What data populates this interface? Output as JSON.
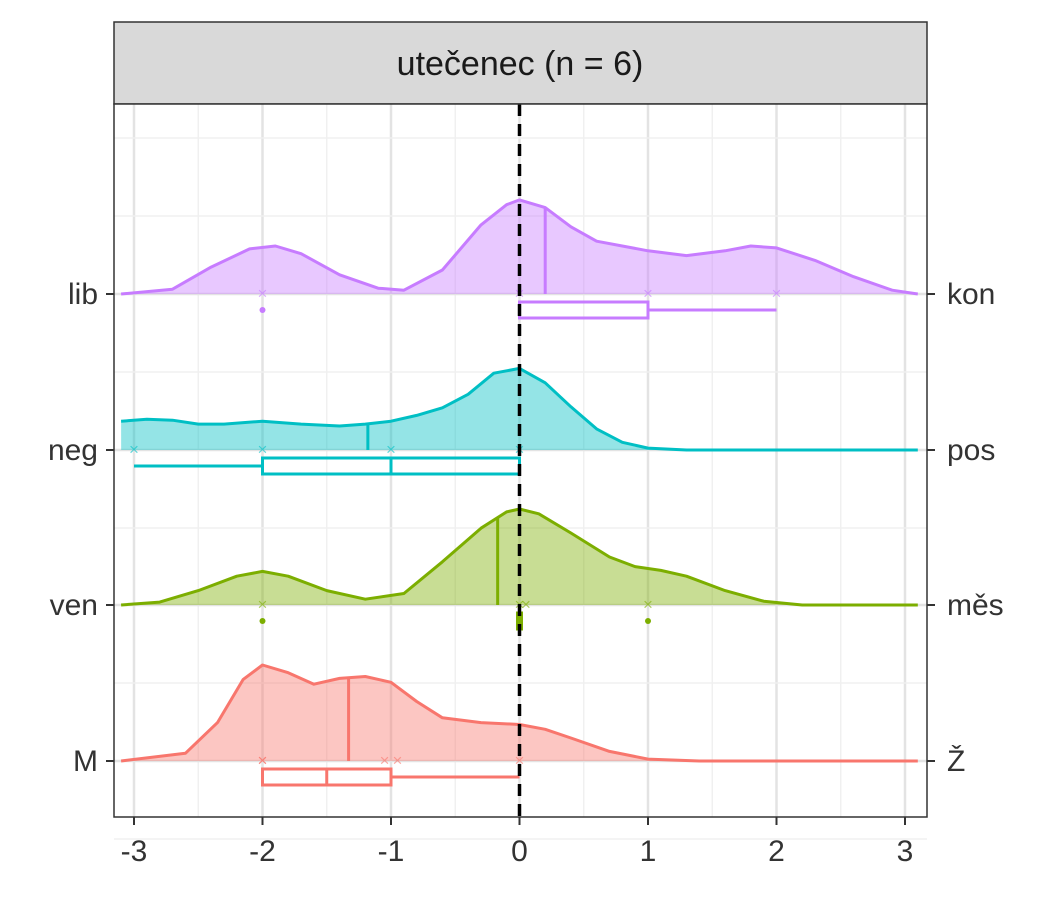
{
  "chart_data": {
    "type": "ridgeline",
    "facet_title": "utečenec (n = 6)",
    "x_ticks": [
      -3,
      -2,
      -1,
      0,
      1,
      2,
      3
    ],
    "xlim": [
      -3.1,
      3.1
    ],
    "reference_line_x": 0,
    "series": [
      {
        "left_label": "M",
        "right_label": "Ž",
        "color": "#F8766D",
        "density": [
          [
            -3.1,
            0.0
          ],
          [
            -2.6,
            0.08
          ],
          [
            -2.35,
            0.4
          ],
          [
            -2.15,
            0.85
          ],
          [
            -2.0,
            1.0
          ],
          [
            -1.8,
            0.92
          ],
          [
            -1.6,
            0.8
          ],
          [
            -1.4,
            0.86
          ],
          [
            -1.2,
            0.88
          ],
          [
            -1.0,
            0.82
          ],
          [
            -0.8,
            0.62
          ],
          [
            -0.6,
            0.45
          ],
          [
            -0.3,
            0.4
          ],
          [
            0.0,
            0.38
          ],
          [
            0.2,
            0.33
          ],
          [
            0.4,
            0.24
          ],
          [
            0.7,
            0.1
          ],
          [
            1.0,
            0.02
          ],
          [
            1.4,
            0.0
          ],
          [
            3.1,
            0.0
          ]
        ],
        "mean": -1.33,
        "points": [
          -2.0,
          -2.0,
          -1.05,
          -0.95,
          0.0
        ],
        "box": {
          "min": -2.0,
          "q1": -2.0,
          "median": -1.5,
          "q3": -1.0,
          "max": 0.0
        }
      },
      {
        "left_label": "ven",
        "right_label": "měs",
        "color": "#7CAE00",
        "density": [
          [
            -3.1,
            0.0
          ],
          [
            -2.8,
            0.03
          ],
          [
            -2.5,
            0.15
          ],
          [
            -2.2,
            0.3
          ],
          [
            -2.0,
            0.35
          ],
          [
            -1.8,
            0.3
          ],
          [
            -1.5,
            0.15
          ],
          [
            -1.2,
            0.06
          ],
          [
            -0.9,
            0.12
          ],
          [
            -0.6,
            0.45
          ],
          [
            -0.3,
            0.8
          ],
          [
            -0.1,
            0.97
          ],
          [
            0.0,
            1.0
          ],
          [
            0.15,
            0.95
          ],
          [
            0.4,
            0.75
          ],
          [
            0.7,
            0.5
          ],
          [
            0.9,
            0.4
          ],
          [
            1.1,
            0.36
          ],
          [
            1.3,
            0.3
          ],
          [
            1.6,
            0.15
          ],
          [
            1.9,
            0.04
          ],
          [
            2.2,
            0.0
          ],
          [
            3.1,
            0.0
          ]
        ],
        "mean": -0.17,
        "points": [
          -2.0,
          0.0,
          0.05,
          1.0
        ],
        "box": {
          "min": 0.0,
          "q1": 0.0,
          "median": 0.0,
          "q3": 0.0,
          "max": 0.0
        },
        "outliers": [
          -2.0,
          1.0
        ]
      },
      {
        "left_label": "neg",
        "right_label": "pos",
        "color": "#00BFC4",
        "density": [
          [
            -3.1,
            0.3
          ],
          [
            -2.9,
            0.32
          ],
          [
            -2.7,
            0.31
          ],
          [
            -2.5,
            0.27
          ],
          [
            -2.3,
            0.27
          ],
          [
            -2.0,
            0.3
          ],
          [
            -1.7,
            0.27
          ],
          [
            -1.4,
            0.25
          ],
          [
            -1.2,
            0.27
          ],
          [
            -1.0,
            0.3
          ],
          [
            -0.8,
            0.36
          ],
          [
            -0.6,
            0.44
          ],
          [
            -0.4,
            0.58
          ],
          [
            -0.2,
            0.8
          ],
          [
            0.0,
            0.85
          ],
          [
            0.2,
            0.7
          ],
          [
            0.4,
            0.45
          ],
          [
            0.6,
            0.22
          ],
          [
            0.8,
            0.08
          ],
          [
            1.0,
            0.02
          ],
          [
            1.3,
            0.0
          ],
          [
            3.1,
            0.0
          ]
        ],
        "mean": -1.18,
        "points": [
          -3.0,
          -2.0,
          -1.0,
          0.0
        ],
        "box": {
          "min": -3.0,
          "q1": -2.0,
          "median": -1.0,
          "q3": 0.0,
          "max": 0.0
        }
      },
      {
        "left_label": "lib",
        "right_label": "kon",
        "color": "#C77CFF",
        "density": [
          [
            -3.1,
            0.0
          ],
          [
            -2.7,
            0.05
          ],
          [
            -2.4,
            0.28
          ],
          [
            -2.1,
            0.47
          ],
          [
            -1.9,
            0.5
          ],
          [
            -1.7,
            0.42
          ],
          [
            -1.4,
            0.2
          ],
          [
            -1.1,
            0.06
          ],
          [
            -0.9,
            0.04
          ],
          [
            -0.6,
            0.25
          ],
          [
            -0.3,
            0.72
          ],
          [
            -0.1,
            0.93
          ],
          [
            0.0,
            0.98
          ],
          [
            0.2,
            0.9
          ],
          [
            0.4,
            0.7
          ],
          [
            0.6,
            0.55
          ],
          [
            0.8,
            0.5
          ],
          [
            1.0,
            0.45
          ],
          [
            1.3,
            0.4
          ],
          [
            1.6,
            0.45
          ],
          [
            1.8,
            0.5
          ],
          [
            2.0,
            0.48
          ],
          [
            2.3,
            0.35
          ],
          [
            2.6,
            0.18
          ],
          [
            2.9,
            0.04
          ],
          [
            3.1,
            0.0
          ]
        ],
        "mean": 0.2,
        "points": [
          -2.0,
          0.0,
          1.0,
          2.0
        ],
        "box": {
          "min": 0.0,
          "q1": 0.0,
          "median": 0.0,
          "q3": 1.0,
          "max": 2.0
        },
        "outliers": [
          -2.0
        ]
      }
    ]
  }
}
